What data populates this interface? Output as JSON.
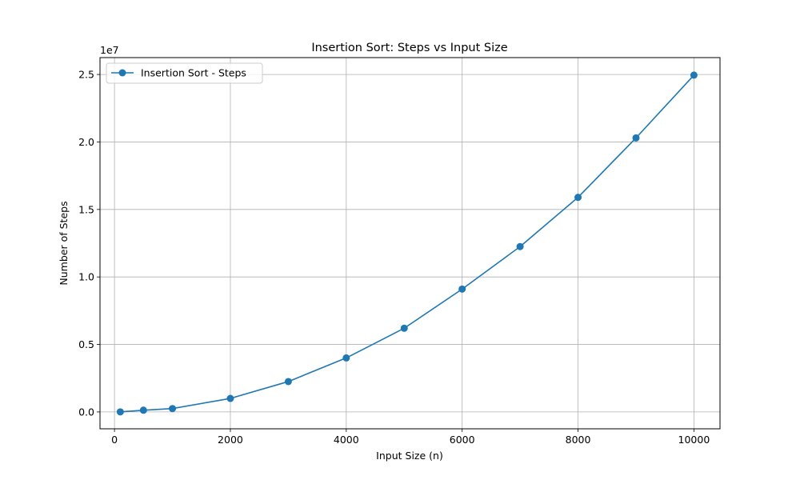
{
  "chart_data": {
    "type": "line",
    "title": "Insertion Sort: Steps vs Input Size",
    "xlabel": "Input Size (n)",
    "ylabel": "Number of Steps",
    "y_offset_label": "1e7",
    "xlim": [
      -250,
      10450
    ],
    "ylim": [
      -1250000,
      26250000
    ],
    "x_ticks": [
      0,
      2000,
      4000,
      6000,
      8000,
      10000
    ],
    "x_tick_labels": [
      "0",
      "2000",
      "4000",
      "6000",
      "8000",
      "10000"
    ],
    "y_ticks": [
      0,
      5000000,
      10000000,
      15000000,
      20000000,
      25000000
    ],
    "y_tick_labels": [
      "0.0",
      "0.5",
      "1.0",
      "1.5",
      "2.0",
      "2.5"
    ],
    "grid": true,
    "legend_position": "top-left",
    "series": [
      {
        "name": "Insertion Sort - Steps",
        "color": "#1f77b4",
        "marker": "circle",
        "x": [
          100,
          500,
          1000,
          2000,
          3000,
          4000,
          5000,
          6000,
          7000,
          8000,
          9000,
          10000
        ],
        "y": [
          5000,
          125000,
          250000,
          1000000,
          2250000,
          4000000,
          6200000,
          9100000,
          12250000,
          15900000,
          20300000,
          24950000
        ]
      }
    ]
  }
}
